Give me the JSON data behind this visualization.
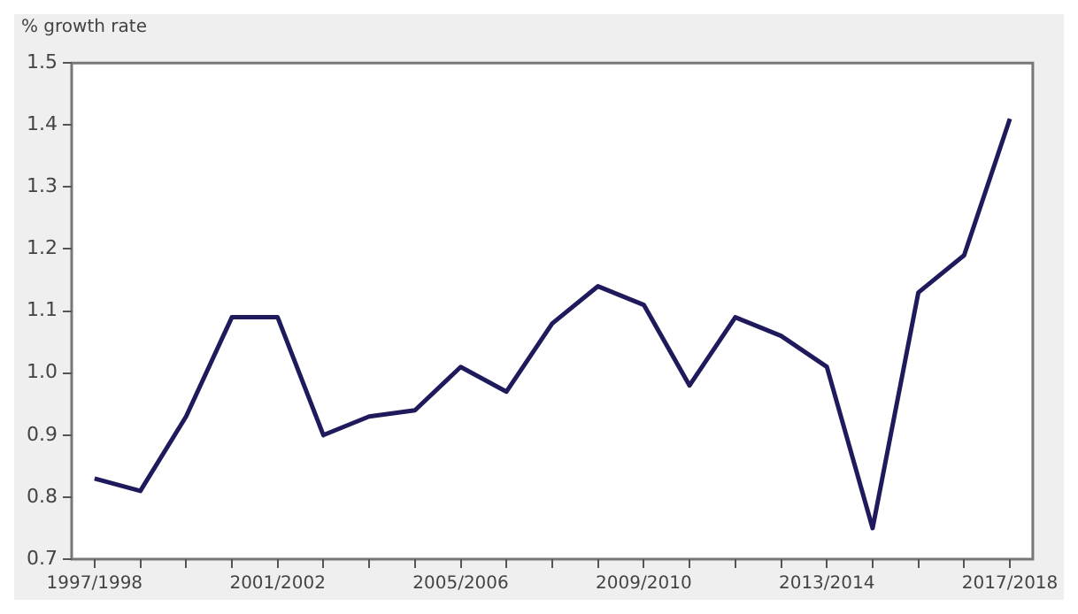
{
  "chart_data": {
    "type": "line",
    "ylabel": "% growth rate",
    "categories": [
      "1997/1998",
      null,
      null,
      null,
      "2001/2002",
      null,
      null,
      null,
      "2005/2006",
      null,
      null,
      null,
      "2009/2010",
      null,
      null,
      null,
      "2013/2014",
      null,
      null,
      null,
      "2017/2018"
    ],
    "series": [
      {
        "color": "#1f1a5c",
        "values": [
          0.83,
          0.81,
          0.93,
          1.09,
          1.09,
          0.9,
          0.93,
          0.94,
          1.01,
          0.97,
          1.08,
          1.14,
          1.11,
          0.98,
          1.09,
          1.06,
          1.01,
          0.75,
          1.13,
          1.19,
          1.41
        ]
      }
    ],
    "ylim": [
      0.7,
      1.5
    ],
    "yticks": [
      0.7,
      0.8,
      0.9,
      {
        "value": 1,
        "label": "1.0"
      },
      1.1,
      1.2,
      1.3,
      1.4,
      1.5
    ],
    "grid": false,
    "legend": false,
    "marker": "none",
    "line_style": "solid"
  }
}
